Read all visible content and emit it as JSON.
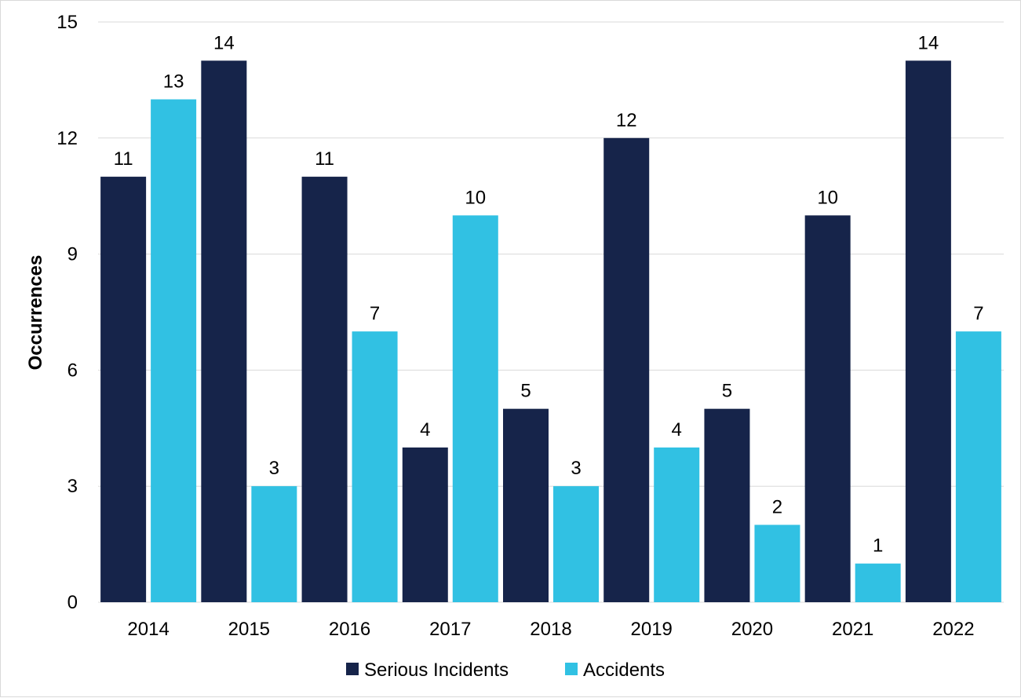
{
  "chart_data": {
    "type": "bar",
    "categories": [
      "2014",
      "2015",
      "2016",
      "2017",
      "2018",
      "2019",
      "2020",
      "2021",
      "2022"
    ],
    "series": [
      {
        "name": "Serious Incidents",
        "color": "#16244a",
        "values": [
          11,
          14,
          11,
          4,
          5,
          12,
          5,
          10,
          14
        ]
      },
      {
        "name": "Accidents",
        "color": "#31c1e3",
        "values": [
          13,
          3,
          7,
          10,
          3,
          4,
          2,
          1,
          7
        ]
      }
    ],
    "ylabel": "Occurrences",
    "ylim": [
      0,
      15
    ],
    "yticks": [
      0,
      3,
      6,
      9,
      12,
      15
    ],
    "grid": true,
    "gridColor": "#d9d9d9",
    "legend": "bottom"
  }
}
